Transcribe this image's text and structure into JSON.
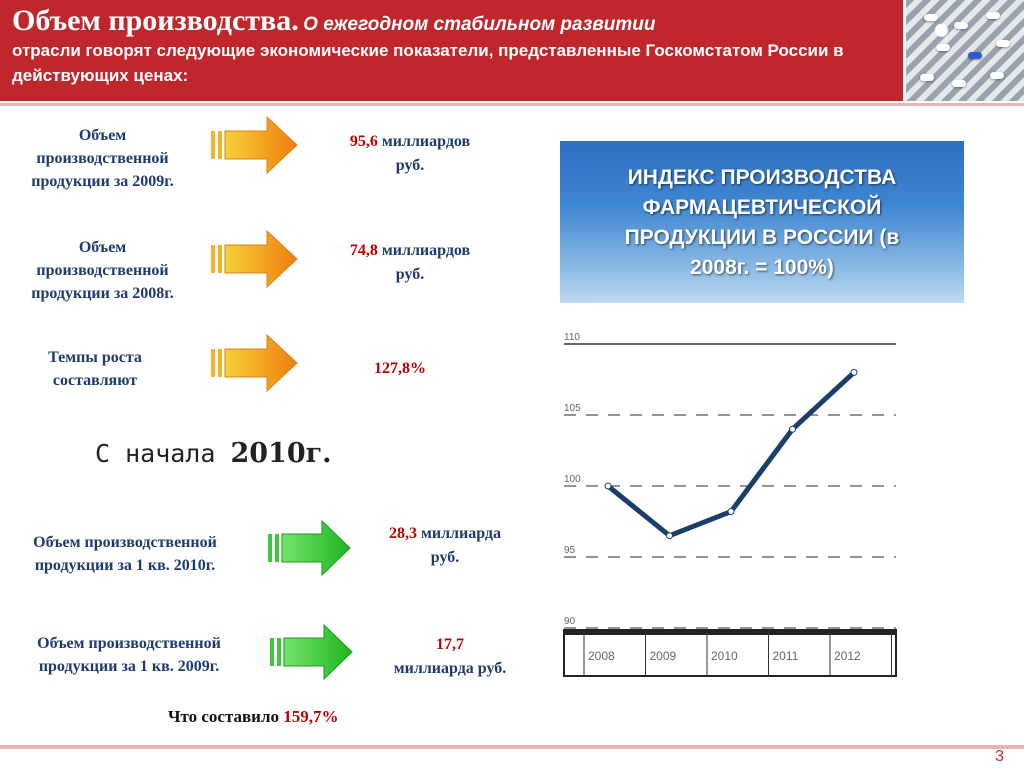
{
  "header": {
    "title": "Объем производства.",
    "lead": "О ежегодном стабильном развитии",
    "rest": "отрасли говорят следующие экономические показатели, представленные Госкомстатом России в действующих ценах:"
  },
  "rows": [
    {
      "label": [
        "Объем",
        "производственной",
        "продукции за 2009г."
      ],
      "num": "95,6",
      "unit_1": "миллиардов",
      "unit_2": "руб."
    },
    {
      "label": [
        "Объем",
        "производственной",
        "продукции за 2008г."
      ],
      "num": "74,8",
      "unit_1": "миллиардов",
      "unit_2": "руб."
    },
    {
      "label": [
        "Темпы роста",
        "составляют"
      ],
      "num": "127,8%"
    }
  ],
  "from_label": {
    "prefix": "С начала ",
    "year": "2010",
    "suffix": "г."
  },
  "quarter_rows": [
    {
      "label": [
        "Объем производственной",
        "продукции за 1 кв. 2010г."
      ],
      "num": "28,3",
      "unit_1": "миллиарда",
      "unit_2": "руб."
    },
    {
      "label": [
        "Объем производственной",
        "продукции за 1 кв. 2009г."
      ],
      "num": "17,7",
      "unit_1": "миллиарда руб."
    }
  ],
  "conclusion": {
    "text": "Что составило ",
    "num": "159,7%"
  },
  "banner": {
    "lines": [
      "ИНДЕКС ПРОИЗВОДСТВА",
      "ФАРМАЦЕВТИЧЕСКОЙ",
      "ПРОДУКЦИИ В РОССИИ (в",
      "2008г. = 100%)"
    ]
  },
  "colors": {
    "header": "#c0272d",
    "text_blue": "#1f3a6e",
    "accent_red": "#c00000",
    "line": "#1a3f6b",
    "arrow_orange": "#f29a1c",
    "arrow_green": "#2ec32e"
  },
  "chart_data": {
    "type": "line",
    "x": [
      "2008",
      "2009",
      "2010",
      "2011",
      "2012"
    ],
    "series": [
      {
        "values": [
          100,
          96.5,
          98.2,
          104,
          108
        ]
      }
    ],
    "y_ticks": [
      "110",
      "105",
      "100",
      "95",
      "90"
    ],
    "ylim": [
      90,
      110
    ],
    "grid": true
  },
  "page_number": "3"
}
